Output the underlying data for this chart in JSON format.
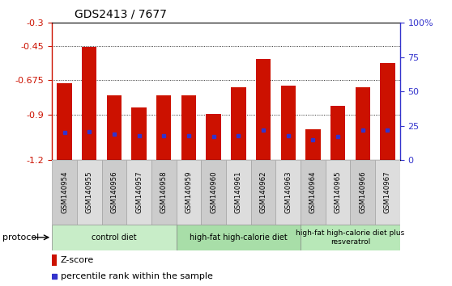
{
  "title": "GDS2413 / 7677",
  "samples": [
    "GSM140954",
    "GSM140955",
    "GSM140956",
    "GSM140957",
    "GSM140958",
    "GSM140959",
    "GSM140960",
    "GSM140961",
    "GSM140962",
    "GSM140963",
    "GSM140964",
    "GSM140965",
    "GSM140966",
    "GSM140967"
  ],
  "zscore": [
    -0.695,
    -0.455,
    -0.775,
    -0.855,
    -0.775,
    -0.775,
    -0.895,
    -0.72,
    -0.535,
    -0.71,
    -1.0,
    -0.845,
    -0.72,
    -0.565
  ],
  "percentile": [
    20,
    21,
    19,
    18,
    18,
    18,
    17,
    18,
    22,
    18,
    15,
    17,
    22,
    22
  ],
  "bar_color": "#CC1100",
  "dot_color": "#3333CC",
  "ylim_left": [
    -1.2,
    -0.3
  ],
  "yticks_left": [
    -1.2,
    -0.9,
    -0.675,
    -0.45,
    -0.3
  ],
  "ylim_right": [
    0,
    100
  ],
  "yticks_right": [
    0,
    25,
    50,
    75,
    100
  ],
  "yticklabels_right": [
    "0",
    "25",
    "50",
    "75",
    "100%"
  ],
  "groups": [
    {
      "label": "control diet",
      "start": 0,
      "end": 5,
      "color": "#c8edc8"
    },
    {
      "label": "high-fat high-calorie diet",
      "start": 5,
      "end": 10,
      "color": "#a8dea8"
    },
    {
      "label": "high-fat high-calorie diet plus\nresveratrol",
      "start": 10,
      "end": 14,
      "color": "#b8e8b8"
    }
  ],
  "protocol_label": "protocol",
  "legend_zscore": "Z-score",
  "legend_percentile": "percentile rank within the sample",
  "bar_width": 0.6,
  "title_fontsize": 10,
  "axis_color_left": "#CC1100",
  "axis_color_right": "#3333CC",
  "sample_bg": "#cccccc",
  "sample_cell_bg_alt": "#dddddd"
}
